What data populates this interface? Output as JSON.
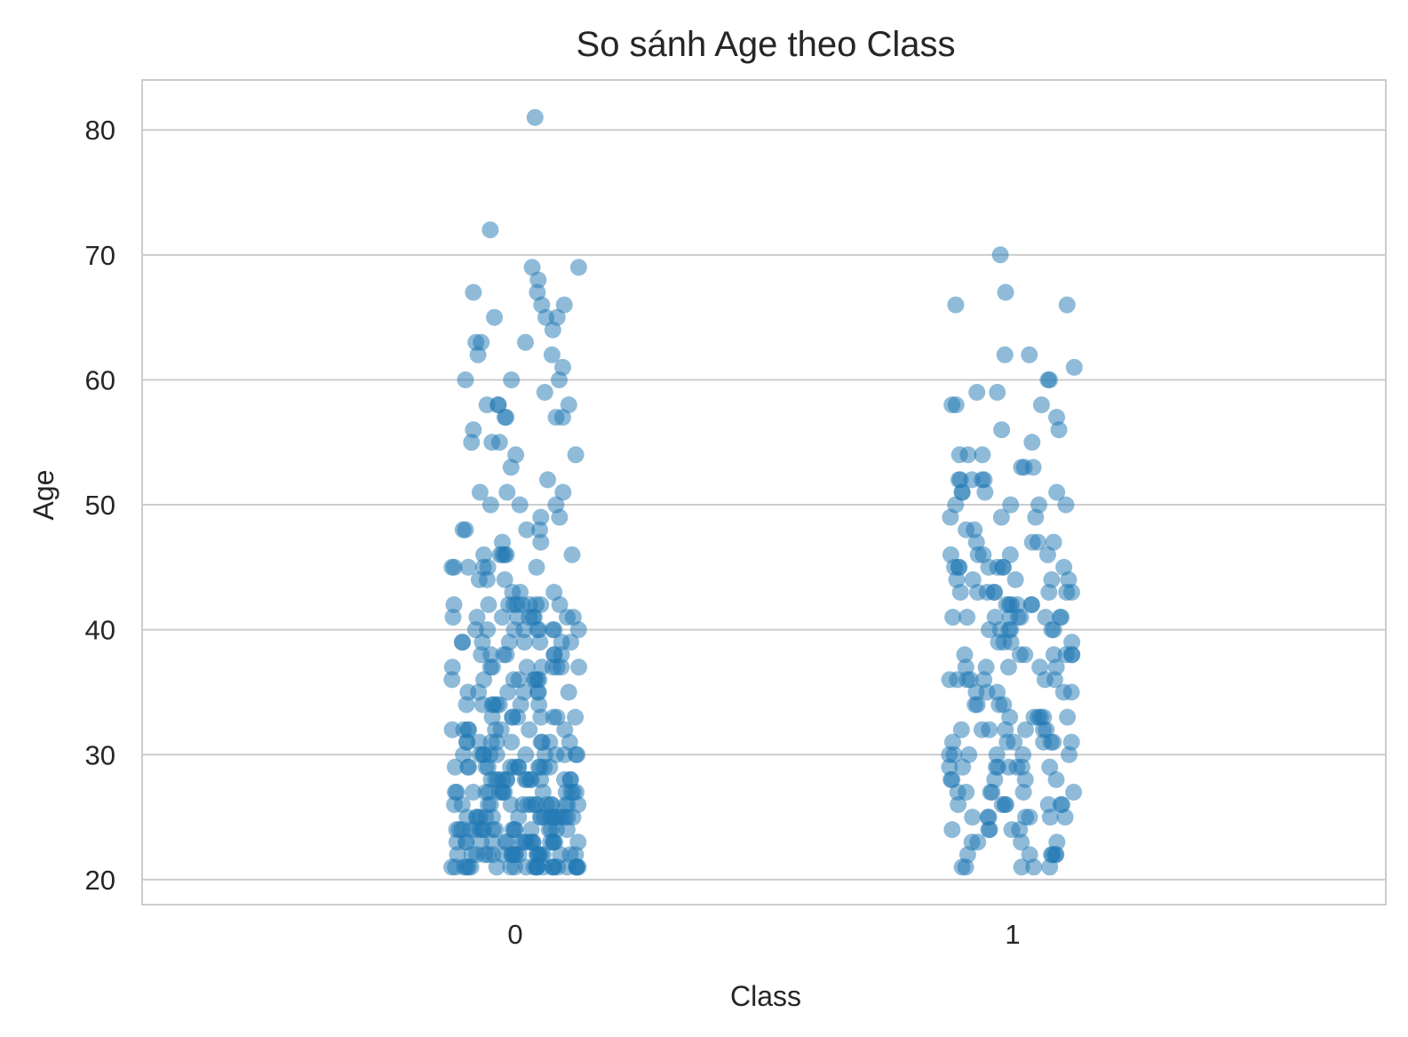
{
  "chart_data": {
    "type": "scatter",
    "title": "So sánh Age theo Class",
    "xlabel": "Class",
    "ylabel": "Age",
    "categories": [
      "0",
      "1"
    ],
    "ylim": [
      18,
      84
    ],
    "yticks": [
      20,
      30,
      40,
      50,
      60,
      70,
      80
    ],
    "grid": true,
    "color": "#1f77b4",
    "series": [
      {
        "category": "0",
        "values": [
          81,
          72,
          69,
          69,
          68,
          67,
          67,
          66,
          66,
          65,
          65,
          65,
          64,
          63,
          63,
          63,
          62,
          62,
          61,
          60,
          60,
          60,
          59,
          58,
          58,
          58,
          58,
          57,
          57,
          57,
          57,
          56,
          55,
          55,
          55,
          54,
          54,
          53,
          52,
          51,
          51,
          51,
          50,
          50,
          50,
          49,
          49,
          48,
          48,
          48,
          48,
          47,
          47,
          46,
          46,
          46,
          46,
          46,
          46,
          45,
          45,
          45,
          45,
          45,
          45,
          44,
          44,
          44,
          43,
          43,
          43,
          42,
          42,
          42,
          42,
          42,
          42,
          42,
          42,
          42,
          42,
          41,
          41,
          41,
          41,
          41,
          41,
          41,
          41,
          41,
          40,
          40,
          40,
          40,
          40,
          40,
          40,
          40,
          40,
          39,
          39,
          39,
          39,
          39,
          39,
          39,
          39,
          38,
          38,
          38,
          38,
          38,
          38,
          38,
          37,
          37,
          37,
          37,
          37,
          37,
          37,
          37,
          37,
          36,
          36,
          36,
          36,
          36,
          36,
          36,
          36,
          35,
          35,
          35,
          35,
          35,
          35,
          35,
          34,
          34,
          34,
          34,
          34,
          34,
          34,
          34,
          33,
          33,
          33,
          33,
          33,
          33,
          33,
          33,
          32,
          32,
          32,
          32,
          32,
          32,
          32,
          32,
          31,
          31,
          31,
          31,
          31,
          31,
          31,
          31,
          31,
          31,
          30,
          30,
          30,
          30,
          30,
          30,
          30,
          30,
          30,
          30,
          30,
          30,
          29,
          29,
          29,
          29,
          29,
          29,
          29,
          29,
          29,
          29,
          29,
          29,
          29,
          28,
          28,
          28,
          28,
          28,
          28,
          28,
          28,
          28,
          28,
          28,
          28,
          28,
          28,
          27,
          27,
          27,
          27,
          27,
          27,
          27,
          27,
          27,
          27,
          27,
          27,
          27,
          27,
          26,
          26,
          26,
          26,
          26,
          26,
          26,
          26,
          26,
          26,
          26,
          26,
          26,
          26,
          26,
          26,
          25,
          25,
          25,
          25,
          25,
          25,
          25,
          25,
          25,
          25,
          25,
          25,
          25,
          25,
          25,
          25,
          25,
          25,
          24,
          24,
          24,
          24,
          24,
          24,
          24,
          24,
          24,
          24,
          24,
          24,
          24,
          24,
          24,
          24,
          24,
          24,
          23,
          23,
          23,
          23,
          23,
          23,
          23,
          23,
          23,
          23,
          23,
          23,
          23,
          23,
          23,
          23,
          23,
          23,
          22,
          22,
          22,
          22,
          22,
          22,
          22,
          22,
          22,
          22,
          22,
          22,
          22,
          22,
          22,
          22,
          22,
          22,
          22,
          22,
          21,
          21,
          21,
          21,
          21,
          21,
          21,
          21,
          21,
          21,
          21,
          21,
          21,
          21,
          21,
          21,
          21,
          21,
          21,
          21,
          21,
          21,
          21,
          21
        ]
      },
      {
        "category": "1",
        "values": [
          70,
          67,
          66,
          66,
          62,
          62,
          61,
          60,
          60,
          59,
          59,
          58,
          58,
          58,
          57,
          56,
          56,
          55,
          54,
          54,
          54,
          53,
          53,
          53,
          52,
          52,
          52,
          52,
          52,
          51,
          51,
          51,
          51,
          50,
          50,
          50,
          50,
          49,
          49,
          49,
          48,
          48,
          47,
          47,
          47,
          47,
          46,
          46,
          46,
          46,
          46,
          45,
          45,
          45,
          45,
          45,
          45,
          45,
          45,
          44,
          44,
          44,
          44,
          44,
          43,
          43,
          43,
          43,
          43,
          43,
          43,
          43,
          42,
          42,
          42,
          42,
          42,
          42,
          41,
          41,
          41,
          41,
          41,
          41,
          41,
          41,
          41,
          40,
          40,
          40,
          40,
          40,
          40,
          39,
          39,
          39,
          39,
          38,
          38,
          38,
          38,
          38,
          38,
          38,
          37,
          37,
          37,
          37,
          37,
          36,
          36,
          36,
          36,
          36,
          36,
          36,
          35,
          35,
          35,
          35,
          35,
          34,
          34,
          34,
          34,
          33,
          33,
          33,
          33,
          33,
          33,
          32,
          32,
          32,
          32,
          32,
          32,
          32,
          31,
          31,
          31,
          31,
          31,
          31,
          31,
          30,
          30,
          30,
          30,
          30,
          30,
          29,
          29,
          29,
          29,
          29,
          29,
          29,
          29,
          28,
          28,
          28,
          28,
          28,
          27,
          27,
          27,
          27,
          27,
          27,
          26,
          26,
          26,
          26,
          26,
          26,
          26,
          25,
          25,
          25,
          25,
          25,
          25,
          25,
          24,
          24,
          24,
          24,
          24,
          23,
          23,
          23,
          23,
          22,
          22,
          22,
          22,
          22,
          22,
          21,
          21,
          21,
          21,
          21
        ]
      }
    ]
  }
}
